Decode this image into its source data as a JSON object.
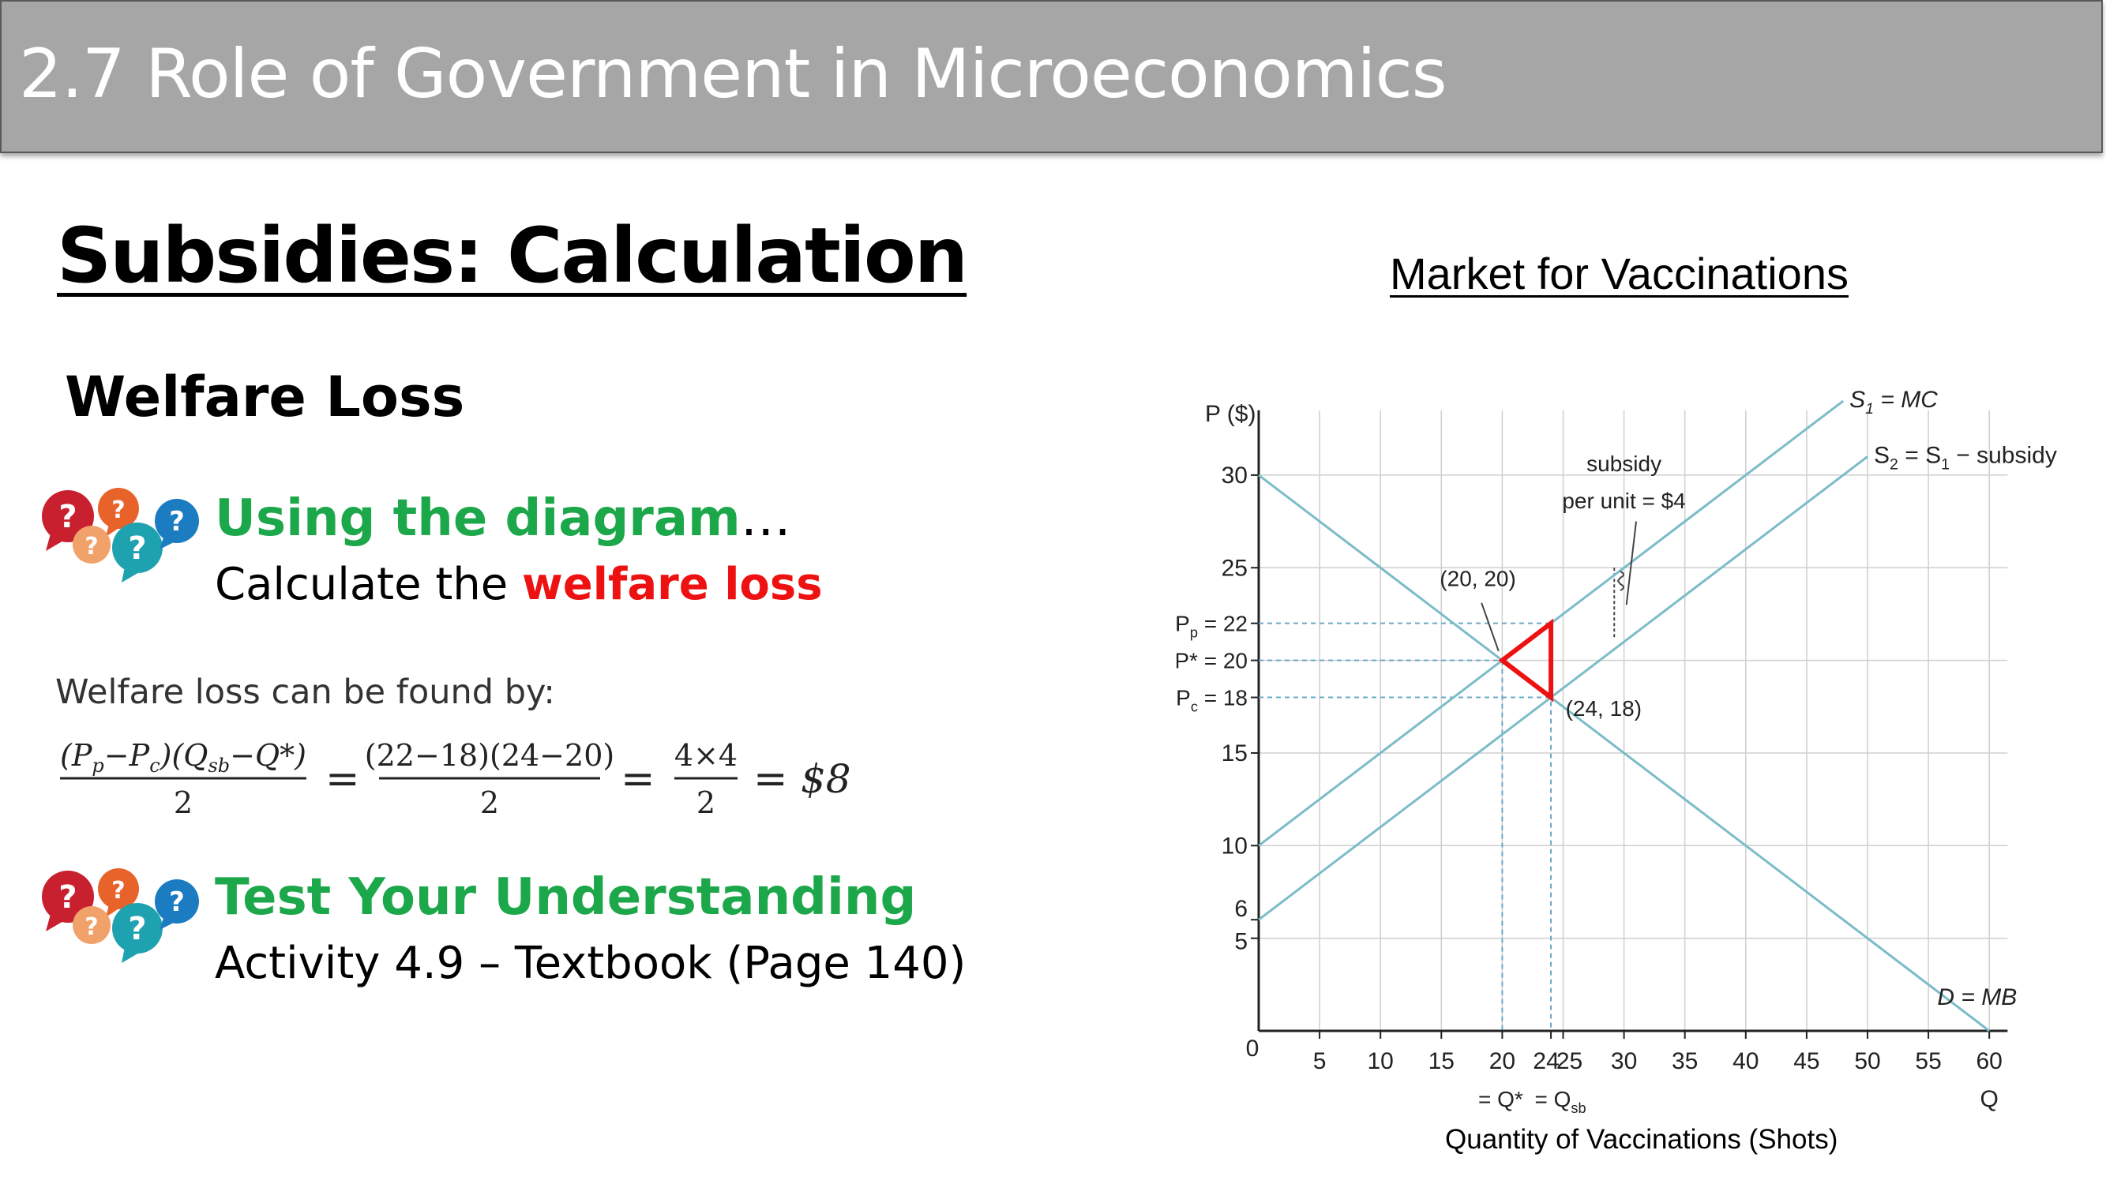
{
  "slide": {
    "title": "2.7 Role of Government in Microeconomics",
    "heading": "Subsidies: Calculation",
    "subheading": "Welfare Loss"
  },
  "prompt1": {
    "title_main": "Using the diagram",
    "title_ellipsis": "…",
    "line_prefix": "Calculate the ",
    "line_highlight": "welfare loss"
  },
  "formula": {
    "label": "Welfare loss can be found by:",
    "expression": "((Pp − Pc)(Qsb − Q*))/2 = ((22−18)(24−20))/2 = (4×4)/2 = $8",
    "parts": {
      "num1_a": "(P",
      "num1_b": "p",
      "num1_c": "−P",
      "num1_d": "c",
      "num1_e": ")(Q",
      "num1_f": "sb",
      "num1_g": "−Q*)",
      "den": "2",
      "eq": "=",
      "num2": "(22−18)(24−20)",
      "num3": "4×4",
      "result": "$8"
    }
  },
  "prompt2": {
    "title": "Test Your Understanding",
    "line": "Activity 4.9 – Textbook (Page 140)"
  },
  "chart_title": "Market for Vaccinations",
  "x_caption": "Quantity of Vaccinations (Shots)",
  "colors": {
    "title_bar": "#a6a6a6",
    "green": "#1ca74a",
    "red": "#ee1111",
    "curve": "#7bbcc8",
    "grid": "#cfcfcf",
    "icon_red": "#c8202e",
    "icon_orange": "#e8632a",
    "icon_lightorange": "#f0a26a",
    "icon_teal": "#1fa2b0",
    "icon_blue": "#1b7cc1"
  },
  "icons": [
    "question-bubbles-icon"
  ],
  "chart_data": {
    "type": "line",
    "xlim": [
      0,
      60
    ],
    "ylim": [
      0,
      30
    ],
    "xlabel": "Q",
    "ylabel": "P ($)",
    "x_ticks": [
      5,
      10,
      15,
      20,
      24,
      25,
      30,
      35,
      40,
      45,
      50,
      55,
      60
    ],
    "x_ticks_labeled": [
      "5",
      "10",
      "15",
      "20",
      "24",
      "25",
      "30",
      "35",
      "40",
      "45",
      "50",
      "55",
      "60"
    ],
    "y_ticks": [
      5,
      6,
      10,
      15,
      25,
      30
    ],
    "y_ticks_labeled": [
      "5",
      "6",
      "10",
      "15",
      "25",
      "30"
    ],
    "origin_label": "0",
    "x_sub_label_a": "= Q*",
    "x_sub_label_b": "= Q",
    "x_sub_label_b_sub": "sb",
    "grid": true,
    "series": [
      {
        "name": "S1 = MC",
        "label_main": "S",
        "label_sub": "1",
        "label_rest": " = MC",
        "points": [
          [
            0,
            10
          ],
          [
            48,
            34
          ]
        ]
      },
      {
        "name": "S2 = S1 − subsidy",
        "label_main": "S",
        "label_sub": "2",
        "label_eq": " = S",
        "label_sub2": "1",
        "label_rest": " − subsidy",
        "points": [
          [
            0,
            6
          ],
          [
            50,
            31
          ]
        ]
      },
      {
        "name": "D = MB",
        "points": [
          [
            0,
            30
          ],
          [
            60,
            0
          ]
        ]
      }
    ],
    "price_labels": [
      {
        "y": 22,
        "main": "P",
        "sub": "p",
        "rest": " = 22"
      },
      {
        "y": 20,
        "main": "P*",
        "sub": "",
        "rest": " = 20"
      },
      {
        "y": 18,
        "main": "P",
        "sub": "c",
        "rest": " = 18"
      }
    ],
    "annotations": [
      {
        "text": "(20, 20)",
        "x": 20,
        "y": 20
      },
      {
        "text": "(24, 18)",
        "x": 24,
        "y": 18
      },
      {
        "text_line1": "subsidy",
        "text_line2": "per unit = $4"
      }
    ],
    "welfare_loss_triangle": [
      [
        20,
        20
      ],
      [
        24,
        22
      ],
      [
        24,
        18
      ]
    ]
  }
}
